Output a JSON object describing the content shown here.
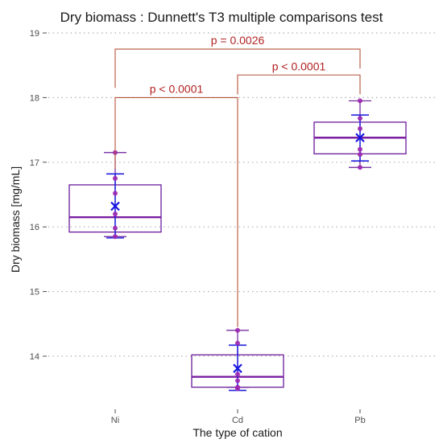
{
  "chart_data": {
    "type": "box",
    "title": "Dry biomass : Dunnett's T3 multiple comparisons test",
    "xlabel": "The type of cation",
    "ylabel": "Dry biomass [mg/mL]",
    "ylim": [
      13.3,
      19.1
    ],
    "yticks": [
      14,
      15,
      16,
      17,
      18,
      19
    ],
    "grid": "horizontal dotted",
    "categories": [
      "Ni",
      "Cd",
      "Pb"
    ],
    "boxes": [
      {
        "name": "Ni",
        "whisker_low": 15.85,
        "q1": 15.92,
        "median": 16.15,
        "q3": 16.65,
        "whisker_high": 17.15,
        "mean": 16.32,
        "ci_low": 15.83,
        "ci_high": 16.82,
        "points": [
          15.85,
          15.98,
          16.2,
          16.52,
          16.75,
          17.15
        ]
      },
      {
        "name": "Cd",
        "whisker_low": 13.52,
        "q1": 13.52,
        "median": 13.68,
        "q3": 14.02,
        "whisker_high": 14.4,
        "mean": 13.81,
        "ci_low": 13.47,
        "ci_high": 14.17,
        "points": [
          13.5,
          13.52,
          13.62,
          13.72,
          14.2,
          14.4
        ]
      },
      {
        "name": "Pb",
        "whisker_low": 16.92,
        "q1": 17.13,
        "median": 17.38,
        "q3": 17.62,
        "whisker_high": 17.95,
        "mean": 17.38,
        "ci_low": 17.02,
        "ci_high": 17.73,
        "points": [
          16.92,
          17.12,
          17.2,
          17.52,
          17.68,
          17.95
        ]
      }
    ],
    "comparisons": [
      {
        "from": "Ni",
        "to": "Cd",
        "label": "p < 0.0001",
        "y": 18.0,
        "drop_to": [
          16.9,
          14.45
        ]
      },
      {
        "from": "Cd",
        "to": "Pb",
        "label": "p < 0.0001",
        "y": 18.35,
        "drop_to": [
          18.05,
          18.05
        ]
      },
      {
        "from": "Ni",
        "to": "Pb",
        "label": "p =  0.0026",
        "y": 18.75,
        "drop_to": [
          18.15,
          18.45
        ]
      }
    ],
    "colors": {
      "box": "#6a1b9a",
      "median": "#7b1fa2",
      "points": "#9c27b0",
      "errorbar": "#2222dd",
      "mean": "#1515e0",
      "bracket": "#b5533a",
      "pvalue": "#b22222",
      "grid": "#b0b0b0"
    }
  }
}
